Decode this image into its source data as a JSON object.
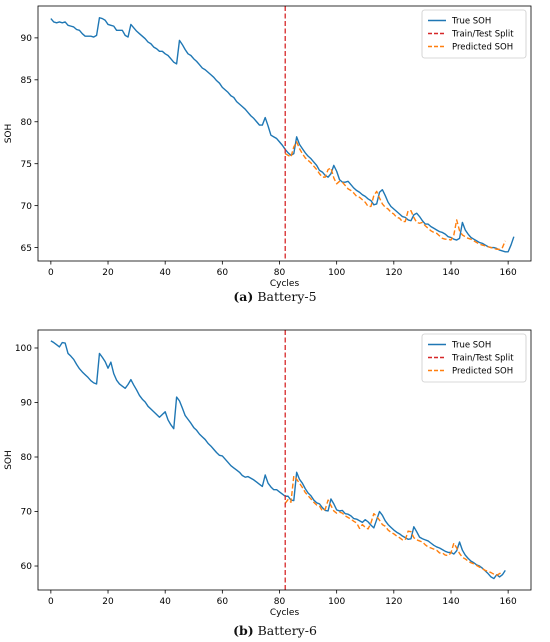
{
  "chart_data": [
    {
      "type": "line",
      "caption_label": "(a)",
      "caption_text": "Battery-5",
      "xlabel": "Cycles",
      "ylabel": "SOH",
      "xlim": [
        -4.5,
        168
      ],
      "ylim": [
        63.4,
        93.8
      ],
      "xticks": [
        0,
        20,
        40,
        60,
        80,
        100,
        120,
        140,
        160
      ],
      "yticks": [
        65,
        70,
        75,
        80,
        85,
        90
      ],
      "grid": false,
      "legend_position": "top-right",
      "split": {
        "name": "Train/Test Split",
        "x": 82,
        "color": "#d62728"
      },
      "series": [
        {
          "name": "True SOH",
          "color": "#1f77b4",
          "x_start": 0,
          "values": [
            92.3,
            91.9,
            91.8,
            91.9,
            91.8,
            91.9,
            91.5,
            91.4,
            91.3,
            91.0,
            90.9,
            90.5,
            90.2,
            90.2,
            90.2,
            90.1,
            90.3,
            92.4,
            92.3,
            92.1,
            91.6,
            91.5,
            91.4,
            90.9,
            90.9,
            90.9,
            90.3,
            90.1,
            91.6,
            91.2,
            90.8,
            90.5,
            90.2,
            89.9,
            89.5,
            89.3,
            88.9,
            88.7,
            88.4,
            88.4,
            88.1,
            87.9,
            87.5,
            87.1,
            86.9,
            89.7,
            89.2,
            88.6,
            88.1,
            87.9,
            87.5,
            87.2,
            86.8,
            86.4,
            86.2,
            85.9,
            85.6,
            85.3,
            84.9,
            84.6,
            84.1,
            83.8,
            83.5,
            83.1,
            82.9,
            82.4,
            82.1,
            81.8,
            81.5,
            81.1,
            80.7,
            80.4,
            80.0,
            79.6,
            79.6,
            80.5,
            79.5,
            78.4,
            78.2,
            78.0,
            77.6,
            77.2,
            76.7,
            76.3,
            76.0,
            76.2,
            78.2,
            77.3,
            76.8,
            76.3,
            75.9,
            75.6,
            75.2,
            74.8,
            74.2,
            74.0,
            73.6,
            73.4,
            73.8,
            74.8,
            74.1,
            73.1,
            72.8,
            72.8,
            72.9,
            72.5,
            72.1,
            71.8,
            71.6,
            71.3,
            71.1,
            70.8,
            70.6,
            70.1,
            70.2,
            71.6,
            71.9,
            71.2,
            70.4,
            69.9,
            69.6,
            69.3,
            69.0,
            68.7,
            68.6,
            68.3,
            68.2,
            68.9,
            69.1,
            68.7,
            68.2,
            67.8,
            67.8,
            67.5,
            67.3,
            67.1,
            66.9,
            66.8,
            66.6,
            66.3,
            66.2,
            66.0,
            65.9,
            66.1,
            68.0,
            67.1,
            66.6,
            66.2,
            66.0,
            65.8,
            65.6,
            65.5,
            65.3,
            65.1,
            65.0,
            65.0,
            64.9,
            64.7,
            64.6,
            64.5,
            64.5,
            65.3,
            66.3
          ]
        },
        {
          "name": "Predicted SOH",
          "color": "#ff7f0e",
          "dashed": true,
          "x_start": 82,
          "values": [
            76.2,
            76.0,
            75.8,
            77.0,
            77.6,
            76.8,
            76.2,
            75.7,
            75.4,
            75.1,
            74.7,
            74.3,
            73.8,
            73.4,
            73.4,
            74.3,
            74.5,
            73.3,
            72.6,
            72.9,
            72.8,
            72.4,
            72.0,
            71.8,
            71.5,
            71.1,
            71.0,
            70.7,
            70.4,
            69.9,
            69.9,
            71.2,
            71.7,
            70.9,
            70.2,
            69.8,
            69.6,
            69.2,
            69.0,
            68.6,
            68.5,
            68.1,
            68.1,
            69.4,
            69.4,
            68.6,
            68.0,
            67.9,
            68.0,
            67.6,
            67.3,
            67.0,
            66.8,
            66.7,
            66.4,
            66.1,
            66.0,
            66.0,
            65.9,
            66.5,
            68.3,
            67.0,
            66.5,
            66.3,
            66.1,
            66.0,
            65.8,
            65.6,
            65.4,
            65.3,
            65.2,
            65.1,
            65.0,
            64.9,
            64.8,
            64.8,
            65.0,
            65.8
          ]
        }
      ]
    },
    {
      "type": "line",
      "caption_label": "(b)",
      "caption_text": "Battery-6",
      "xlabel": "Cycles",
      "ylabel": "SOH",
      "xlim": [
        -4.5,
        168
      ],
      "ylim": [
        55.6,
        103.3
      ],
      "xticks": [
        0,
        20,
        40,
        60,
        80,
        100,
        120,
        140,
        160
      ],
      "yticks": [
        60,
        70,
        80,
        90,
        100
      ],
      "grid": false,
      "legend_position": "top-right",
      "split": {
        "name": "Train/Test Split",
        "x": 82,
        "color": "#d62728"
      },
      "series": [
        {
          "name": "True SOH",
          "color": "#1f77b4",
          "x_start": 0,
          "values": [
            101.3,
            101.0,
            100.6,
            100.2,
            101.0,
            100.9,
            99.0,
            98.5,
            97.9,
            97.0,
            96.2,
            95.6,
            95.1,
            94.6,
            94.0,
            93.6,
            93.4,
            99.0,
            98.3,
            97.5,
            96.3,
            97.4,
            95.3,
            94.1,
            93.4,
            93.0,
            92.6,
            93.3,
            94.2,
            93.2,
            92.3,
            91.3,
            90.6,
            90.1,
            89.3,
            88.8,
            88.3,
            87.8,
            87.3,
            87.8,
            88.3,
            86.8,
            85.9,
            85.2,
            91.0,
            90.3,
            89.0,
            87.6,
            86.9,
            86.2,
            85.4,
            84.9,
            84.2,
            83.7,
            83.2,
            82.5,
            82.0,
            81.4,
            80.8,
            80.3,
            80.2,
            79.6,
            79.0,
            78.4,
            78.0,
            77.6,
            77.2,
            76.6,
            76.3,
            76.4,
            76.1,
            75.8,
            75.4,
            75.0,
            74.6,
            76.7,
            75.2,
            74.5,
            74.0,
            74.0,
            73.6,
            73.2,
            72.8,
            72.8,
            72.1,
            72.0,
            77.2,
            75.9,
            75.2,
            74.2,
            73.4,
            72.9,
            72.1,
            71.6,
            71.4,
            70.7,
            70.2,
            70.1,
            72.3,
            71.4,
            70.3,
            70.1,
            70.2,
            69.6,
            69.5,
            69.2,
            68.7,
            68.6,
            68.3,
            68.0,
            68.5,
            68.1,
            67.5,
            67.0,
            68.5,
            70.0,
            69.3,
            68.3,
            67.6,
            67.1,
            66.6,
            66.2,
            65.9,
            65.5,
            65.2,
            64.9,
            65.0,
            67.2,
            66.3,
            65.3,
            65.0,
            64.8,
            64.6,
            64.2,
            63.8,
            63.5,
            63.3,
            63.0,
            62.7,
            62.5,
            62.5,
            62.2,
            62.8,
            64.4,
            62.9,
            62.0,
            61.4,
            60.9,
            60.6,
            60.2,
            60.0,
            59.6,
            59.1,
            58.6,
            58.0,
            57.7,
            58.4,
            58.0,
            58.4,
            59.2
          ]
        },
        {
          "name": "Predicted SOH",
          "color": "#ff7f0e",
          "dashed": true,
          "x_start": 82,
          "values": [
            71.5,
            72.2,
            71.7,
            76.5,
            75.9,
            75.2,
            74.4,
            73.5,
            72.9,
            72.3,
            71.7,
            71.2,
            71.0,
            70.1,
            70.4,
            72.1,
            71.1,
            70.1,
            69.7,
            69.9,
            69.7,
            69.2,
            68.9,
            68.6,
            68.2,
            67.9,
            66.9,
            67.6,
            67.1,
            66.8,
            67.9,
            69.6,
            69.1,
            68.4,
            67.6,
            67.3,
            66.6,
            66.2,
            65.9,
            65.5,
            65.2,
            64.8,
            64.8,
            66.4,
            66.3,
            65.2,
            64.8,
            64.6,
            64.4,
            63.9,
            63.5,
            63.3,
            63.1,
            62.9,
            62.4,
            62.4,
            62.0,
            61.9,
            62.4,
            64.2,
            63.3,
            62.3,
            61.6,
            61.3,
            60.9,
            60.6,
            60.4,
            60.1,
            59.8,
            59.5,
            59.2,
            59.0,
            58.8,
            58.5,
            58.3,
            58.6,
            59.0
          ]
        }
      ]
    }
  ]
}
